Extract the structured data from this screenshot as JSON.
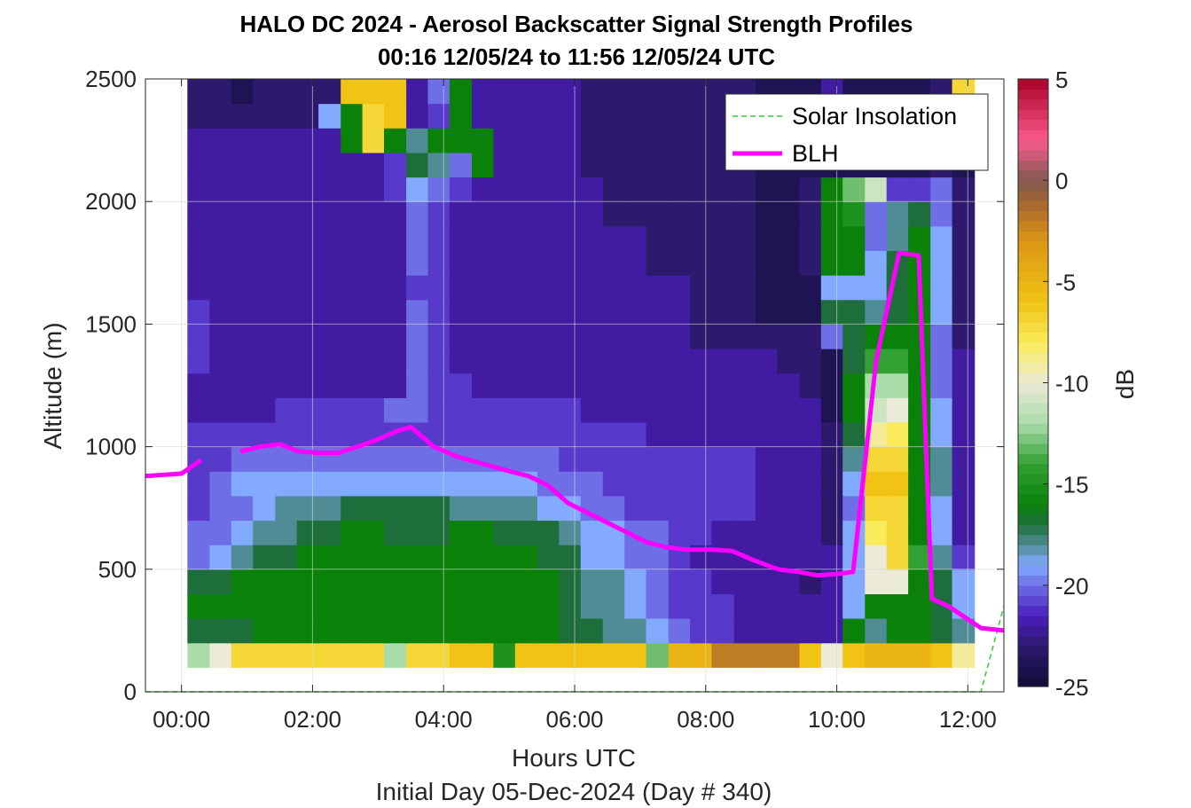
{
  "chart_data": {
    "type": "heatmap",
    "title": "HALO DC 2024 - Aerosol Backscatter Signal Strength Profiles",
    "subtitle": "00:16 12/05/24 to 11:56 12/05/24  UTC",
    "xlabel": "Hours UTC",
    "xlabel2": "Initial Day 05-Dec-2024 (Day # 340)",
    "ylabel": "Altitude (m)",
    "colorbar_label": "dB",
    "xlim_hours": [
      -0.55,
      12.55
    ],
    "ylim": [
      0,
      2500
    ],
    "x_ticks": [
      {
        "value": 0,
        "label": "00:00"
      },
      {
        "value": 2,
        "label": "02:00"
      },
      {
        "value": 4,
        "label": "04:00"
      },
      {
        "value": 6,
        "label": "06:00"
      },
      {
        "value": 8,
        "label": "08:00"
      },
      {
        "value": 10,
        "label": "10:00"
      },
      {
        "value": 12,
        "label": "12:00"
      }
    ],
    "y_ticks": [
      {
        "value": 0,
        "label": "0"
      },
      {
        "value": 500,
        "label": "500"
      },
      {
        "value": 1000,
        "label": "1000"
      },
      {
        "value": 1500,
        "label": "1500"
      },
      {
        "value": 2000,
        "label": "2000"
      },
      {
        "value": 2500,
        "label": "2500"
      }
    ],
    "colorbar_range": [
      -25,
      5
    ],
    "colorbar_ticks": [
      {
        "value": 5,
        "label": "5"
      },
      {
        "value": 0,
        "label": "0"
      },
      {
        "value": -5,
        "label": "-5"
      },
      {
        "value": -10,
        "label": "-10"
      },
      {
        "value": -15,
        "label": "-15"
      },
      {
        "value": -20,
        "label": "-20"
      },
      {
        "value": -25,
        "label": "-25"
      }
    ],
    "grid": true,
    "legend": {
      "placement": "top-right",
      "entries": [
        {
          "label": "Solar Insolation",
          "color": "#33cc33",
          "style": "dashed"
        },
        {
          "label": "BLH",
          "color": "#ff00ff",
          "style": "solid"
        }
      ]
    },
    "heatmap_profile_times_hours": [
      0.26,
      0.6,
      0.93,
      1.26,
      1.6,
      1.93,
      2.26,
      2.6,
      2.93,
      3.26,
      3.6,
      3.93,
      4.26,
      4.6,
      4.93,
      5.26,
      5.6,
      5.93,
      6.26,
      6.6,
      6.93,
      7.26,
      7.6,
      7.93,
      8.26,
      8.6,
      8.93,
      9.26,
      9.6,
      9.93,
      10.26,
      10.6,
      10.93,
      11.26,
      11.6,
      11.93
    ],
    "heatmap_altitude_bins_m": [
      150,
      250,
      350,
      450,
      550,
      650,
      750,
      850,
      950,
      1050,
      1150,
      1250,
      1350,
      1450,
      1550,
      1650,
      1750,
      1850,
      1950,
      2050,
      2150,
      2250,
      2350,
      2450
    ],
    "heatmap_signal_db": [
      [
        -12,
        -10,
        -7,
        -7,
        -7,
        -7,
        -7,
        -7,
        -7,
        -12,
        -7,
        -7,
        -6,
        -6,
        -15,
        -6,
        -6,
        -6,
        -6,
        -6,
        -6,
        -13,
        -5,
        -5,
        -2,
        -2,
        -2,
        -2,
        -6,
        -10,
        -6,
        -5,
        -5,
        -5,
        -6,
        -9
      ],
      [
        -17,
        -17,
        -17,
        -16,
        -16,
        -16,
        -16,
        -16,
        -16,
        -16,
        -16,
        -16,
        -16,
        -16,
        -16,
        -16,
        -16,
        -17,
        -17,
        -18,
        -18,
        -19,
        -20,
        -21,
        -21,
        -22,
        -22,
        -22,
        -22,
        -22,
        -16,
        -18,
        -16,
        -16,
        -17,
        -18
      ],
      [
        -16,
        -16,
        -16,
        -16,
        -16,
        -16,
        -16,
        -16,
        -16,
        -16,
        -16,
        -16,
        -16,
        -16,
        -16,
        -16,
        -16,
        -17,
        -18,
        -18,
        -19,
        -20,
        -21,
        -21,
        -21,
        -22,
        -22,
        -22,
        -22,
        -22,
        -19,
        -16,
        -16,
        -16,
        -17,
        -19
      ],
      [
        -17,
        -17,
        -16,
        -16,
        -16,
        -16,
        -16,
        -16,
        -16,
        -16,
        -16,
        -16,
        -16,
        -16,
        -16,
        -16,
        -16,
        -17,
        -18,
        -18,
        -19,
        -20,
        -21,
        -21,
        -22,
        -22,
        -22,
        -22,
        -23,
        -22,
        -19,
        -10,
        -10,
        -16,
        -17,
        -19
      ],
      [
        -20,
        -19,
        -18,
        -17,
        -17,
        -16,
        -16,
        -16,
        -16,
        -16,
        -16,
        -16,
        -16,
        -16,
        -16,
        -16,
        -17,
        -17,
        -19,
        -19,
        -20,
        -20,
        -21,
        -22,
        -22,
        -22,
        -22,
        -22,
        -22,
        -22,
        -19,
        -10,
        -7,
        -14,
        -18,
        -21
      ],
      [
        -20,
        -20,
        -19,
        -18,
        -18,
        -17,
        -17,
        -16,
        -16,
        -17,
        -17,
        -17,
        -16,
        -16,
        -17,
        -17,
        -17,
        -18,
        -19,
        -19,
        -20,
        -20,
        -21,
        -21,
        -22,
        -22,
        -22,
        -22,
        -22,
        -23,
        -19,
        -8,
        -7,
        -16,
        -19,
        -22
      ],
      [
        -21,
        -20,
        -20,
        -19,
        -18,
        -18,
        -18,
        -17,
        -17,
        -17,
        -17,
        -17,
        -18,
        -18,
        -18,
        -18,
        -19,
        -19,
        -20,
        -20,
        -21,
        -21,
        -21,
        -21,
        -21,
        -21,
        -22,
        -22,
        -22,
        -23,
        -20,
        -7,
        -7,
        -16,
        -19,
        -22
      ],
      [
        -21,
        -20,
        -19,
        -19,
        -19,
        -19,
        -19,
        -19,
        -19,
        -19,
        -19,
        -19,
        -19,
        -19,
        -19,
        -19,
        -20,
        -20,
        -20,
        -21,
        -21,
        -21,
        -21,
        -21,
        -21,
        -21,
        -22,
        -22,
        -22,
        -23,
        -19,
        -6,
        -6,
        -16,
        -18,
        -22
      ],
      [
        -21,
        -21,
        -20,
        -20,
        -20,
        -20,
        -20,
        -20,
        -20,
        -20,
        -20,
        -20,
        -20,
        -20,
        -20,
        -20,
        -20,
        -21,
        -21,
        -21,
        -21,
        -21,
        -21,
        -21,
        -21,
        -21,
        -22,
        -22,
        -22,
        -23,
        -18,
        -7,
        -7,
        -16,
        -18,
        -22
      ],
      [
        -21,
        -21,
        -21,
        -21,
        -21,
        -21,
        -21,
        -21,
        -21,
        -21,
        -21,
        -21,
        -21,
        -21,
        -21,
        -21,
        -21,
        -21,
        -21,
        -21,
        -21,
        -22,
        -22,
        -22,
        -22,
        -22,
        -22,
        -22,
        -22,
        -23,
        -17,
        -9,
        -8,
        -16,
        -19,
        -22
      ],
      [
        -22,
        -22,
        -22,
        -22,
        -21,
        -21,
        -21,
        -21,
        -21,
        -20,
        -20,
        -21,
        -21,
        -21,
        -21,
        -21,
        -21,
        -21,
        -22,
        -22,
        -22,
        -22,
        -22,
        -22,
        -22,
        -22,
        -22,
        -22,
        -22,
        -24,
        -16,
        -11,
        -10,
        -16,
        -19,
        -22
      ],
      [
        -22,
        -22,
        -22,
        -22,
        -22,
        -22,
        -22,
        -22,
        -22,
        -22,
        -20,
        -21,
        -21,
        -22,
        -22,
        -22,
        -22,
        -22,
        -22,
        -22,
        -22,
        -22,
        -22,
        -22,
        -22,
        -22,
        -22,
        -22,
        -23,
        -24,
        -16,
        -12,
        -12,
        -16,
        -20,
        -22
      ],
      [
        -21,
        -22,
        -22,
        -22,
        -22,
        -22,
        -22,
        -22,
        -22,
        -22,
        -20,
        -21,
        -22,
        -22,
        -22,
        -22,
        -22,
        -22,
        -22,
        -22,
        -22,
        -22,
        -22,
        -22,
        -22,
        -22,
        -22,
        -23,
        -23,
        -24,
        -17,
        -14,
        -14,
        -16,
        -20,
        -22
      ],
      [
        -21,
        -22,
        -22,
        -22,
        -22,
        -22,
        -22,
        -22,
        -22,
        -22,
        -20,
        -21,
        -22,
        -22,
        -22,
        -22,
        -22,
        -22,
        -22,
        -22,
        -22,
        -22,
        -22,
        -23,
        -23,
        -23,
        -23,
        -23,
        -23,
        -20,
        -17,
        -16,
        -16,
        -16,
        -20,
        -23
      ],
      [
        -21,
        -22,
        -22,
        -22,
        -22,
        -22,
        -22,
        -22,
        -22,
        -22,
        -20,
        -21,
        -22,
        -22,
        -22,
        -22,
        -22,
        -22,
        -22,
        -22,
        -22,
        -22,
        -22,
        -23,
        -23,
        -23,
        -24,
        -24,
        -24,
        -17,
        -17,
        -18,
        -17,
        -16,
        -19,
        -23
      ],
      [
        -22,
        -22,
        -22,
        -22,
        -22,
        -22,
        -22,
        -22,
        -22,
        -22,
        -21,
        -21,
        -22,
        -22,
        -22,
        -22,
        -22,
        -22,
        -22,
        -22,
        -22,
        -22,
        -22,
        -23,
        -23,
        -23,
        -24,
        -24,
        -24,
        -19,
        -19,
        -19,
        -17,
        -16,
        -19,
        -23
      ],
      [
        -22,
        -22,
        -22,
        -22,
        -22,
        -22,
        -22,
        -22,
        -22,
        -22,
        -20,
        -21,
        -22,
        -22,
        -22,
        -22,
        -22,
        -22,
        -22,
        -22,
        -22,
        -23,
        -23,
        -23,
        -23,
        -23,
        -24,
        -24,
        -23,
        -16,
        -16,
        -19,
        -17,
        -16,
        -19,
        -23
      ],
      [
        -22,
        -22,
        -22,
        -22,
        -22,
        -22,
        -22,
        -22,
        -22,
        -22,
        -20,
        -21,
        -22,
        -22,
        -22,
        -22,
        -22,
        -22,
        -22,
        -22,
        -22,
        -23,
        -23,
        -23,
        -23,
        -23,
        -24,
        -24,
        -23,
        -16,
        -16,
        -20,
        -18,
        -16,
        -19,
        -23
      ],
      [
        -22,
        -22,
        -22,
        -22,
        -22,
        -22,
        -22,
        -22,
        -22,
        -22,
        -20,
        -21,
        -22,
        -22,
        -22,
        -22,
        -22,
        -22,
        -22,
        -23,
        -23,
        -23,
        -23,
        -23,
        -23,
        -23,
        -24,
        -24,
        -23,
        -16,
        -15,
        -20,
        -18,
        -17,
        -20,
        -23
      ],
      [
        -22,
        -22,
        -22,
        -22,
        -22,
        -22,
        -22,
        -22,
        -22,
        -21,
        -19,
        -20,
        -21,
        -22,
        -22,
        -22,
        -22,
        -22,
        -22,
        -23,
        -23,
        -23,
        -23,
        -23,
        -23,
        -23,
        -24,
        -24,
        -23,
        -16,
        -13,
        -11,
        -21,
        -21,
        -20,
        -23
      ],
      [
        -22,
        -22,
        -22,
        -22,
        -22,
        -22,
        -22,
        -22,
        -22,
        -21,
        -17,
        -18,
        -20,
        -16,
        -22,
        -22,
        -22,
        -22,
        -23,
        -23,
        -23,
        -23,
        -23,
        -23,
        -23,
        -23,
        -24,
        -24,
        -24,
        -24,
        -24,
        -24,
        -24,
        -24,
        -23,
        -24
      ],
      [
        -22,
        -22,
        -22,
        -22,
        -22,
        -22,
        -22,
        -16,
        -7,
        -16,
        -18,
        -16,
        -16,
        -16,
        -22,
        -22,
        -22,
        -22,
        -23,
        -23,
        -23,
        -23,
        -23,
        -23,
        -23,
        -23,
        -24,
        -24,
        -24,
        -24,
        -24,
        -24,
        -24,
        -24,
        -23,
        -24
      ],
      [
        -23,
        -23,
        -23,
        -23,
        -23,
        -23,
        -19,
        -16,
        -7,
        -6,
        -22,
        -21,
        -16,
        -22,
        -22,
        -22,
        -22,
        -22,
        -23,
        -23,
        -23,
        -23,
        -23,
        -23,
        -23,
        -23,
        -24,
        -24,
        -24,
        -24,
        -24,
        -24,
        -24,
        -24,
        -23,
        -24
      ],
      [
        -23,
        -23,
        -24,
        -23,
        -23,
        -23,
        -23,
        -6,
        -6,
        -6,
        -22,
        -20,
        -16,
        -22,
        -22,
        -22,
        -22,
        -22,
        -23,
        -23,
        -23,
        -23,
        -23,
        -23,
        -23,
        -23,
        -24,
        -24,
        -24,
        -22,
        -24,
        -24,
        -24,
        -24,
        -23,
        -7
      ]
    ],
    "blh_series": {
      "name": "BLH",
      "x_hours": [
        -0.55,
        0.0,
        0.3,
        0.56,
        0.9,
        1.2,
        1.5,
        1.8,
        2.1,
        2.4,
        2.8,
        3.0,
        3.3,
        3.5,
        3.85,
        4.2,
        4.6,
        5.0,
        5.3,
        5.6,
        5.9,
        6.2,
        6.5,
        6.8,
        7.1,
        7.4,
        7.7,
        8.1,
        8.4,
        8.7,
        9.1,
        9.4,
        9.7,
        10.0,
        10.25,
        10.6,
        10.95,
        11.25,
        11.45,
        11.7,
        12.2,
        12.55
      ],
      "y_m": [
        880,
        890,
        945,
        null,
        980,
        1000,
        1010,
        980,
        975,
        975,
        1010,
        1030,
        1065,
        1080,
        1000,
        960,
        930,
        900,
        880,
        840,
        770,
        730,
        690,
        650,
        610,
        590,
        580,
        580,
        575,
        540,
        500,
        490,
        475,
        480,
        490,
        1350,
        1790,
        1780,
        380,
        350,
        260,
        250
      ]
    },
    "solar_insolation_series": {
      "name": "Solar Insolation",
      "x_hours": [
        -0.55,
        12.2,
        12.55
      ],
      "y_m": [
        0,
        0,
        350
      ]
    }
  },
  "colors": {
    "blh": "#ff00ff",
    "solar": "#33cc33",
    "nan_fill": "#ffffff"
  }
}
